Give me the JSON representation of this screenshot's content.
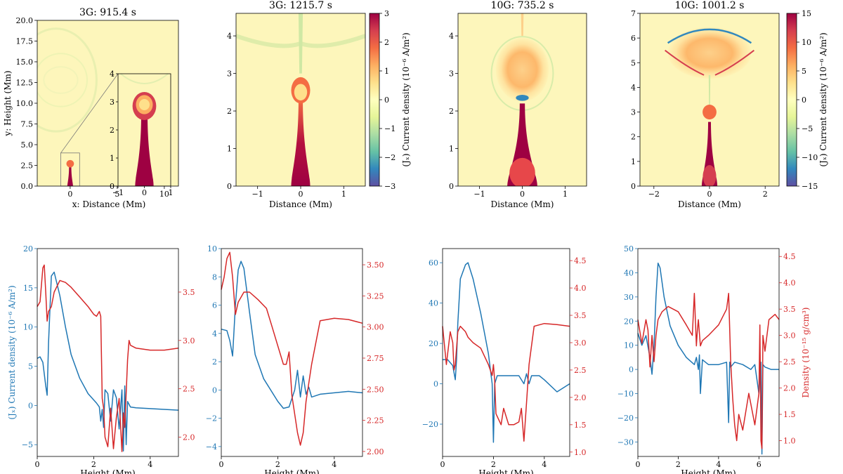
{
  "chart_data": [
    {
      "id": "map1",
      "type": "heatmap",
      "title": "3G: 915.4 s",
      "xlabel": "x: Distance (Mm)",
      "ylabel": "y: Height (Mm)",
      "xlim": [
        -3.5,
        11.5
      ],
      "ylim": [
        0,
        20
      ],
      "xticks": [
        0,
        5,
        10
      ],
      "xticklabels": [
        "0",
        "5",
        "10"
      ],
      "yticks": [
        0,
        2.5,
        5,
        7.5,
        10,
        12.5,
        15,
        17.5,
        20
      ],
      "yticklabels": [
        "0.0",
        "2.5",
        "5.0",
        "7.5",
        "10.0",
        "12.5",
        "15.0",
        "17.5",
        "20.0"
      ],
      "inset": {
        "xlim": [
          -1,
          1
        ],
        "ylim": [
          0,
          4
        ],
        "xticks": [
          -1,
          0,
          1
        ],
        "xticklabels": [
          "−1",
          "0",
          "1"
        ],
        "yticks": [
          0,
          1,
          2,
          3,
          4
        ],
        "yticklabels": [
          "0",
          "1",
          "2",
          "3",
          "4"
        ]
      }
    },
    {
      "id": "map2",
      "type": "heatmap",
      "title": "3G: 1215.7 s",
      "xlabel": "Distance (Mm)",
      "ylabel": "",
      "xlim": [
        -1.5,
        1.5
      ],
      "ylim": [
        0,
        4.6
      ],
      "xticks": [
        -1,
        0,
        1
      ],
      "xticklabels": [
        "−1",
        "0",
        "1"
      ],
      "yticks": [
        0,
        1,
        2,
        3,
        4
      ],
      "yticklabels": [
        "0",
        "1",
        "2",
        "3",
        "4"
      ],
      "colorbar": {
        "label": "(Jₓ) Current density (10⁻⁶ A/m²)",
        "range": [
          -3,
          3
        ],
        "ticks": [
          3,
          2,
          1,
          0,
          -1,
          -2,
          -3
        ],
        "ticklabels": [
          "3",
          "2",
          "1",
          "0",
          "−1",
          "−2",
          "−3"
        ]
      }
    },
    {
      "id": "map3",
      "type": "heatmap",
      "title": "10G: 735.2 s",
      "xlabel": "Distance (Mm)",
      "ylabel": "",
      "xlim": [
        -1.5,
        1.5
      ],
      "ylim": [
        0,
        4.6
      ],
      "xticks": [
        -1,
        0,
        1
      ],
      "xticklabels": [
        "−1",
        "0",
        "1"
      ],
      "yticks": [
        0,
        1,
        2,
        3,
        4
      ],
      "yticklabels": [
        "0",
        "1",
        "2",
        "3",
        "4"
      ]
    },
    {
      "id": "map4",
      "type": "heatmap",
      "title": "10G: 1001.2 s",
      "xlabel": "Distance (Mm)",
      "ylabel": "",
      "xlim": [
        -2.5,
        2.5
      ],
      "ylim": [
        0,
        7
      ],
      "xticks": [
        -2,
        0,
        2
      ],
      "xticklabels": [
        "−2",
        "0",
        "2"
      ],
      "yticks": [
        0,
        1,
        2,
        3,
        4,
        5,
        6,
        7
      ],
      "yticklabels": [
        "0",
        "1",
        "2",
        "3",
        "4",
        "5",
        "6",
        "7"
      ],
      "colorbar": {
        "label": "(Jₓ) Current density (10⁻⁶ A/m²)",
        "range": [
          -15,
          15
        ],
        "ticks": [
          15,
          10,
          5,
          0,
          -5,
          -10,
          -15
        ],
        "ticklabels": [
          "15",
          "10",
          "5",
          "0",
          "−5",
          "−10",
          "−15"
        ]
      }
    },
    {
      "id": "line1",
      "type": "line",
      "xlabel": "Height (Mm)",
      "ylabel_left": "(Jₓ) Current density (10⁻⁶ A/m²)",
      "ylabel_right": "",
      "xlim": [
        0,
        5
      ],
      "xticks": [
        0,
        2,
        4
      ],
      "ylim_left": [
        -6.5,
        20
      ],
      "yticks_left": [
        20,
        15,
        10,
        5,
        0,
        -5
      ],
      "yticklabels_left": [
        "20",
        "15",
        "10",
        "5",
        "0",
        "−5"
      ],
      "ylim_right": [
        1.8,
        3.95
      ],
      "yticks_right": [
        3.5,
        3.0,
        2.5,
        2.0
      ],
      "yticklabels_right": [
        "3.5",
        "3.0",
        "2.5",
        "2.0"
      ],
      "series": [
        {
          "name": "Current density",
          "axis": "left",
          "color": "#1f77b4",
          "x": [
            0,
            0.1,
            0.2,
            0.3,
            0.35,
            0.4,
            0.5,
            0.6,
            0.8,
            1.0,
            1.2,
            1.5,
            1.8,
            2.1,
            2.2,
            2.25,
            2.3,
            2.35,
            2.4,
            2.5,
            2.6,
            2.7,
            2.8,
            2.9,
            3.0,
            3.05,
            3.1,
            3.15,
            3.2,
            3.3,
            3.5,
            4.0,
            4.5,
            5.0
          ],
          "y": [
            6.0,
            6.2,
            5.5,
            2.5,
            1.3,
            8.0,
            16.5,
            17.0,
            14.0,
            10.0,
            6.5,
            3.5,
            1.5,
            0.3,
            -0.2,
            -2.0,
            -0.5,
            -2.8,
            2.0,
            1.5,
            -2.0,
            2.0,
            1.0,
            -3.0,
            2.0,
            -5.8,
            2.5,
            -5.0,
            0.5,
            -0.2,
            -0.3,
            -0.4,
            -0.5,
            -0.6
          ]
        },
        {
          "name": "Density",
          "axis": "right",
          "color": "#d62728",
          "x": [
            0,
            0.1,
            0.2,
            0.25,
            0.3,
            0.35,
            0.4,
            0.5,
            0.6,
            0.8,
            1.0,
            1.2,
            1.5,
            1.8,
            2.0,
            2.1,
            2.2,
            2.25,
            2.3,
            2.35,
            2.4,
            2.5,
            2.6,
            2.7,
            2.8,
            2.9,
            3.0,
            3.05,
            3.1,
            3.2,
            3.25,
            3.3,
            3.5,
            4.0,
            4.5,
            5.0
          ],
          "y": [
            3.35,
            3.4,
            3.75,
            3.78,
            3.5,
            3.2,
            3.3,
            3.35,
            3.5,
            3.62,
            3.6,
            3.55,
            3.45,
            3.35,
            3.27,
            3.25,
            3.3,
            3.25,
            2.4,
            2.3,
            2.0,
            1.9,
            2.3,
            1.88,
            2.2,
            2.4,
            1.85,
            2.25,
            2.1,
            2.8,
            3.0,
            2.95,
            2.92,
            2.9,
            2.9,
            2.92
          ]
        }
      ]
    },
    {
      "id": "line2",
      "type": "line",
      "xlabel": "Height (Mm)",
      "ylabel_left": "",
      "ylabel_right": "",
      "xlim": [
        0,
        5
      ],
      "xticks": [
        0,
        2,
        4
      ],
      "ylim_left": [
        -4.7,
        10
      ],
      "yticks_left": [
        10,
        8,
        6,
        4,
        2,
        0,
        -2,
        -4
      ],
      "yticklabels_left": [
        "10",
        "8",
        "6",
        "4",
        "2",
        "0",
        "−2",
        "−4"
      ],
      "ylim_right": [
        1.96,
        3.63
      ],
      "yticks_right": [
        3.5,
        3.25,
        3.0,
        2.75,
        2.5,
        2.25,
        2.0
      ],
      "yticklabels_right": [
        "3.50",
        "3.25",
        "3.00",
        "2.75",
        "2.50",
        "2.25",
        "2.00"
      ],
      "series": [
        {
          "name": "Current density",
          "axis": "left",
          "color": "#1f77b4",
          "x": [
            0,
            0.2,
            0.3,
            0.4,
            0.5,
            0.6,
            0.7,
            0.8,
            1.0,
            1.2,
            1.5,
            2.0,
            2.2,
            2.4,
            2.6,
            2.7,
            2.8,
            2.9,
            3.0,
            3.1,
            3.2,
            3.5,
            4.0,
            4.5,
            5.0
          ],
          "y": [
            4.3,
            4.2,
            3.5,
            2.4,
            6.0,
            8.5,
            9.1,
            8.6,
            5.5,
            2.5,
            0.8,
            -0.8,
            -1.3,
            -1.2,
            0.0,
            1.4,
            -0.5,
            1.0,
            -0.3,
            0.2,
            -0.5,
            -0.3,
            -0.2,
            -0.1,
            -0.2
          ]
        },
        {
          "name": "Density",
          "axis": "right",
          "color": "#d62728",
          "x": [
            0,
            0.1,
            0.2,
            0.3,
            0.4,
            0.5,
            0.6,
            0.8,
            1.0,
            1.3,
            1.6,
            1.8,
            2.0,
            2.2,
            2.3,
            2.4,
            2.5,
            2.6,
            2.7,
            2.8,
            2.9,
            3.0,
            3.2,
            3.5,
            4.0,
            4.5,
            5.0
          ],
          "y": [
            3.3,
            3.4,
            3.55,
            3.6,
            3.4,
            3.1,
            3.2,
            3.28,
            3.28,
            3.22,
            3.15,
            3.0,
            2.85,
            2.7,
            2.7,
            2.8,
            2.45,
            2.3,
            2.15,
            2.05,
            2.15,
            2.4,
            2.7,
            3.05,
            3.07,
            3.06,
            3.03
          ]
        }
      ]
    },
    {
      "id": "line3",
      "type": "line",
      "xlabel": "Height (Mm)",
      "ylabel_left": "",
      "ylabel_right": "",
      "xlim": [
        0,
        5
      ],
      "xticks": [
        0,
        2,
        4
      ],
      "ylim_left": [
        -36,
        67
      ],
      "yticks_left": [
        60,
        40,
        20,
        0,
        -20
      ],
      "yticklabels_left": [
        "60",
        "40",
        "20",
        "0",
        "−20"
      ],
      "ylim_right": [
        0.92,
        4.72
      ],
      "yticks_right": [
        4.5,
        4.0,
        3.5,
        3.0,
        2.5,
        2.0,
        1.5,
        1.0
      ],
      "yticklabels_right": [
        "4.5",
        "4.0",
        "3.5",
        "3.0",
        "2.5",
        "2.0",
        "1.5",
        "1.0"
      ],
      "series": [
        {
          "name": "Current density",
          "axis": "left",
          "color": "#1f77b4",
          "x": [
            0,
            0.2,
            0.4,
            0.5,
            0.55,
            0.6,
            0.7,
            0.9,
            1.0,
            1.2,
            1.5,
            1.8,
            1.95,
            2.0,
            2.05,
            2.15,
            2.3,
            2.5,
            3.0,
            3.2,
            3.3,
            3.4,
            3.5,
            3.8,
            4.0,
            4.5,
            5.0
          ],
          "y": [
            12,
            12,
            9,
            2,
            12,
            30,
            52,
            59,
            60,
            52,
            35,
            15,
            0,
            -29,
            0,
            4,
            4,
            4,
            4,
            0,
            5,
            0,
            4,
            4,
            2,
            -4,
            0
          ]
        },
        {
          "name": "Density",
          "axis": "right",
          "color": "#d62728",
          "x": [
            0,
            0.15,
            0.3,
            0.4,
            0.45,
            0.5,
            0.6,
            0.7,
            0.9,
            1.0,
            1.2,
            1.5,
            1.8,
            1.95,
            2.0,
            2.05,
            2.1,
            2.3,
            2.4,
            2.6,
            2.8,
            3.0,
            3.1,
            3.2,
            3.3,
            3.4,
            3.6,
            4.0,
            4.5,
            5.0
          ],
          "y": [
            3.3,
            2.6,
            3.2,
            3.0,
            2.5,
            2.6,
            3.2,
            3.3,
            3.2,
            3.1,
            3.0,
            2.9,
            2.6,
            2.4,
            2.6,
            2.3,
            1.7,
            1.5,
            1.8,
            1.5,
            1.5,
            1.55,
            1.8,
            1.2,
            1.9,
            2.6,
            3.3,
            3.35,
            3.33,
            3.3
          ]
        }
      ]
    },
    {
      "id": "line4",
      "type": "line",
      "xlabel": "Height (Mm)",
      "ylabel_left": "",
      "ylabel_right": "Density (10⁻¹⁵ g/cm³)",
      "xlim": [
        0,
        7
      ],
      "xticks": [
        0,
        2,
        4,
        6
      ],
      "ylim_left": [
        -36,
        50
      ],
      "yticks_left": [
        50,
        40,
        30,
        20,
        10,
        0,
        -10,
        -20,
        -30
      ],
      "yticklabels_left": [
        "50",
        "40",
        "30",
        "20",
        "10",
        "0",
        "−10",
        "−20",
        "−30"
      ],
      "ylim_right": [
        0.7,
        4.65
      ],
      "yticks_right": [
        4.5,
        4.0,
        3.5,
        3.0,
        2.5,
        2.0,
        1.5,
        1.0
      ],
      "yticklabels_right": [
        "4.5",
        "4.0",
        "3.5",
        "3.0",
        "2.5",
        "2.0",
        "1.5",
        "1.0"
      ],
      "series": [
        {
          "name": "Current density",
          "axis": "left",
          "color": "#1f77b4",
          "x": [
            0,
            0.2,
            0.4,
            0.6,
            0.7,
            0.8,
            0.9,
            1.0,
            1.1,
            1.3,
            1.6,
            2.0,
            2.4,
            2.8,
            2.9,
            3.0,
            3.05,
            3.1,
            3.2,
            3.5,
            4.0,
            4.4,
            4.5,
            4.55,
            4.6,
            4.8,
            5.2,
            5.6,
            5.8,
            6.0,
            6.1,
            6.15,
            6.2,
            6.3,
            6.6,
            7.0
          ],
          "y": [
            15,
            10,
            14,
            5,
            -2,
            10,
            30,
            44,
            42,
            30,
            18,
            10,
            5,
            2,
            5,
            0,
            6,
            -10,
            4,
            2,
            2,
            3,
            -22,
            3,
            1,
            3,
            2,
            0,
            2,
            -10,
            3,
            -35,
            2,
            1,
            0,
            0
          ]
        },
        {
          "name": "Density",
          "axis": "right",
          "color": "#d62728",
          "x": [
            0,
            0.2,
            0.4,
            0.5,
            0.6,
            0.7,
            0.8,
            0.9,
            1.0,
            1.2,
            1.5,
            2.0,
            2.4,
            2.7,
            2.8,
            2.9,
            2.95,
            3.0,
            3.1,
            3.2,
            3.5,
            4.0,
            4.4,
            4.5,
            4.6,
            4.7,
            4.8,
            4.9,
            5.0,
            5.2,
            5.5,
            5.8,
            6.0,
            6.05,
            6.1,
            6.15,
            6.2,
            6.3,
            6.5,
            6.8,
            7.0
          ],
          "y": [
            3.3,
            2.85,
            3.3,
            3.1,
            2.4,
            3.0,
            2.5,
            3.0,
            3.3,
            3.45,
            3.55,
            3.45,
            3.2,
            3.0,
            3.8,
            2.8,
            3.1,
            3.3,
            2.8,
            2.9,
            3.0,
            3.2,
            3.5,
            3.8,
            2.5,
            1.8,
            1.3,
            1.0,
            1.5,
            1.2,
            1.9,
            1.3,
            1.9,
            3.2,
            1.0,
            0.85,
            3.0,
            2.7,
            3.3,
            3.4,
            3.3
          ]
        }
      ]
    }
  ]
}
